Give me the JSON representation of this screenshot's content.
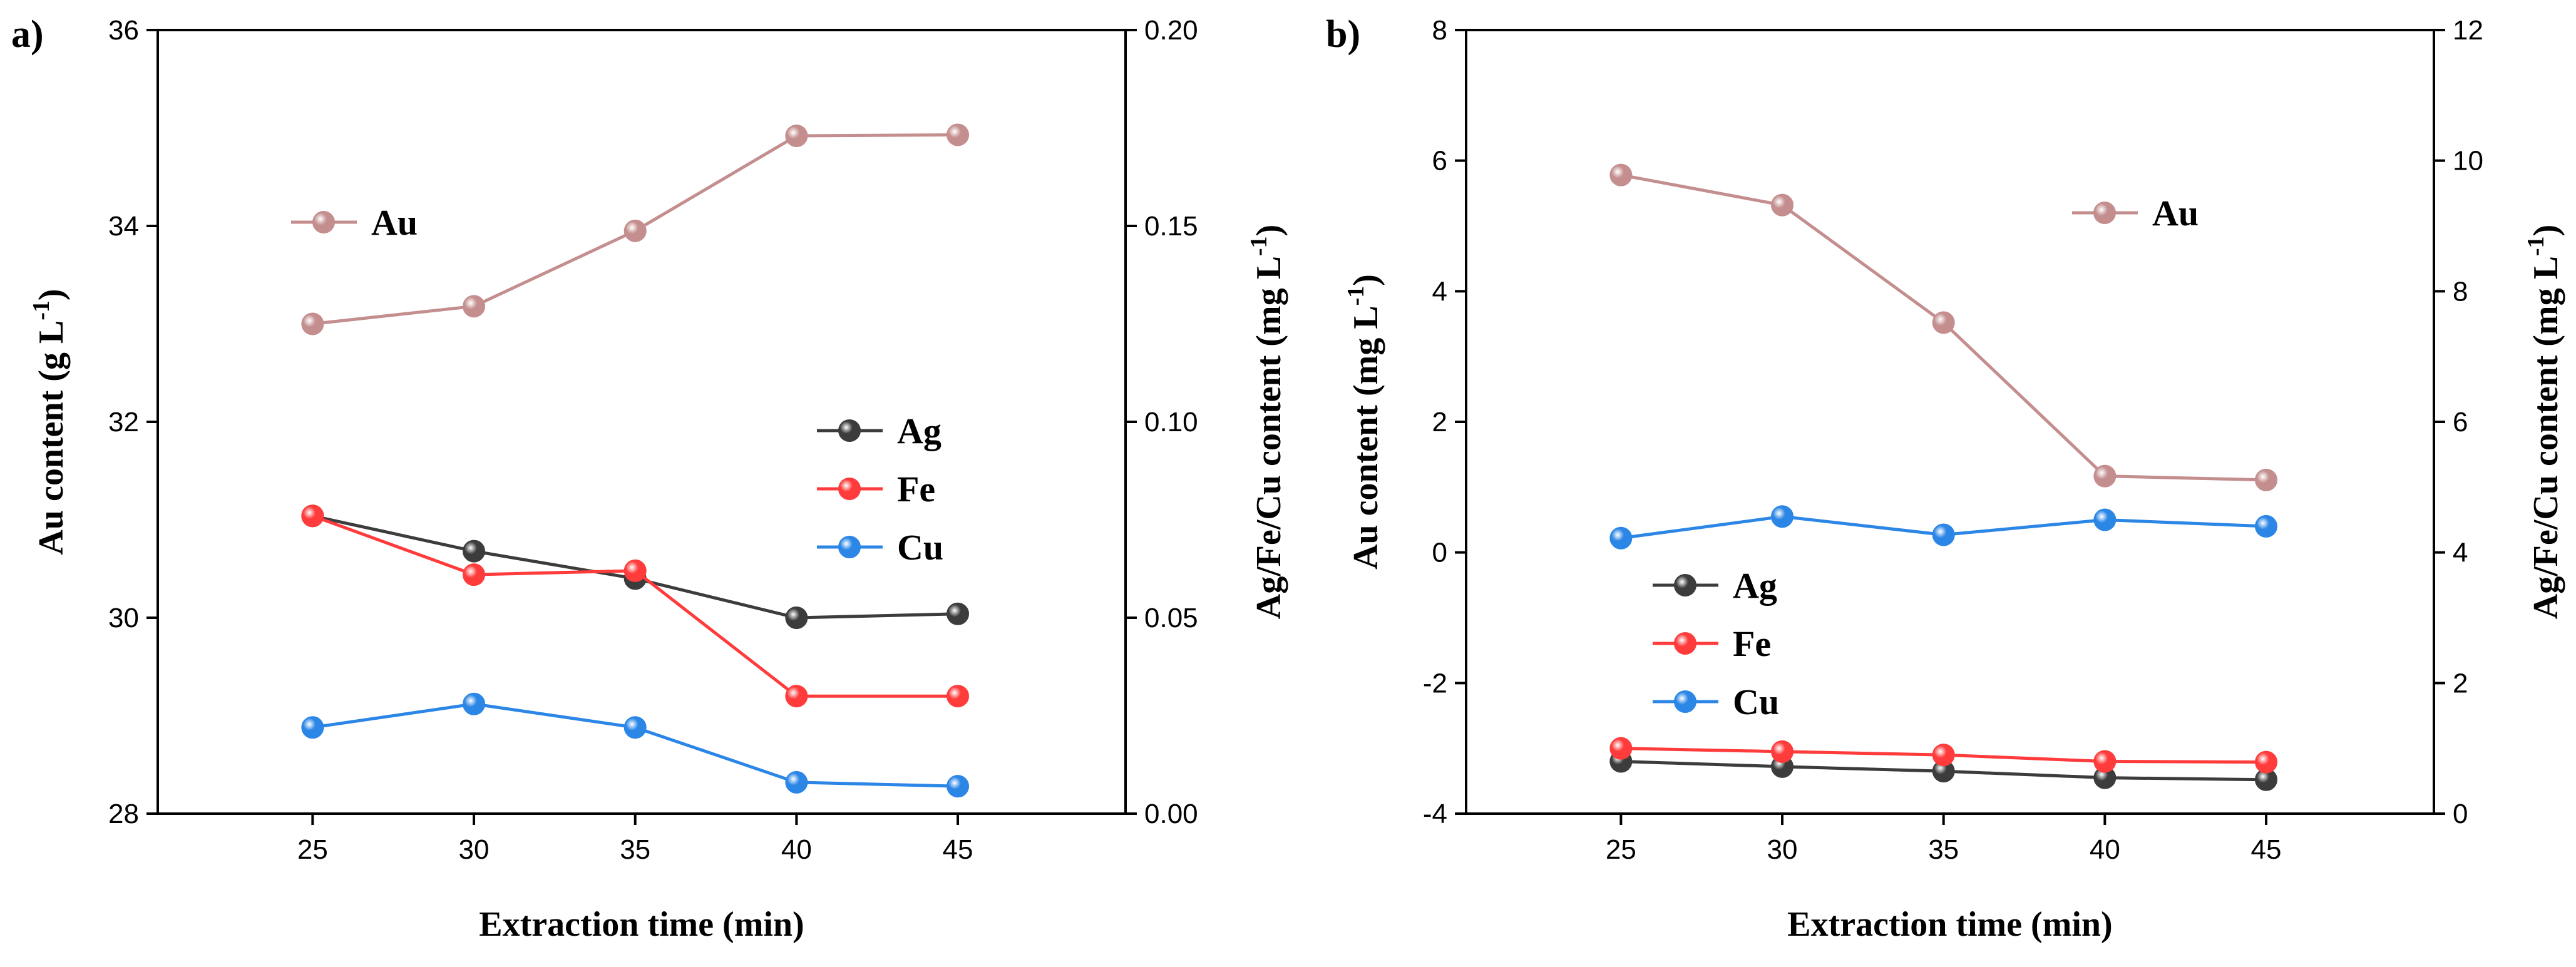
{
  "chart_data": [
    {
      "type": "line",
      "panel_label": "a)",
      "x": [
        25,
        30,
        35,
        40,
        45
      ],
      "xlabel": "Extraction time (min)",
      "xlim": [
        20.2,
        50.2
      ],
      "ylabel_left": "Au content (g L",
      "ylabel_left_sup": "-1",
      "ylabel_left_end": ")",
      "ylabel_right": "Ag/Fe/Cu content (mg L",
      "ylabel_right_sup": "-1",
      "ylabel_right_end": ")",
      "ylim_left": [
        28,
        36
      ],
      "yticks_left": [
        "28",
        "30",
        "32",
        "34",
        "36"
      ],
      "ylim_right": [
        0,
        0.2
      ],
      "yticks_right": [
        "0.00",
        "0.05",
        "0.10",
        "0.15",
        "0.20"
      ],
      "series": [
        {
          "name": "Au",
          "axis": "left",
          "color": "#c48e8e",
          "values": [
            33.0,
            33.18,
            33.95,
            34.92,
            34.93
          ]
        },
        {
          "name": "Ag",
          "axis": "right",
          "color": "#3c3c3c",
          "values": [
            0.076,
            0.067,
            0.06,
            0.05,
            0.051
          ]
        },
        {
          "name": "Fe",
          "axis": "right",
          "color": "#ff3b3b",
          "values": [
            0.076,
            0.061,
            0.062,
            0.03,
            0.03
          ]
        },
        {
          "name": "Cu",
          "axis": "right",
          "color": "#2b86e6",
          "values": [
            0.022,
            0.028,
            0.022,
            0.008,
            0.007
          ]
        }
      ],
      "legend": [
        {
          "group": "top-left",
          "items": [
            "Au"
          ]
        },
        {
          "group": "center-right",
          "items": [
            "Ag",
            "Fe",
            "Cu"
          ]
        }
      ],
      "grid": false
    },
    {
      "type": "line",
      "panel_label": "b)",
      "x": [
        25,
        30,
        35,
        40,
        45
      ],
      "xlabel": "Extraction time (min)",
      "xlim": [
        20.2,
        50.2
      ],
      "ylabel_left": "Au content (mg L",
      "ylabel_left_sup": "-1",
      "ylabel_left_end": ")",
      "ylabel_right": "Ag/Fe/Cu content (mg L",
      "ylabel_right_sup": "-1",
      "ylabel_right_end": ")",
      "ylim_left": [
        -4,
        8
      ],
      "yticks_left": [
        "-4",
        "-2",
        "0",
        "2",
        "4",
        "6",
        "8"
      ],
      "ylim_right": [
        0,
        12
      ],
      "yticks_right": [
        "0",
        "2",
        "4",
        "6",
        "8",
        "10",
        "12"
      ],
      "series": [
        {
          "name": "Au",
          "axis": "left",
          "color": "#c48e8e",
          "values": [
            5.78,
            5.32,
            3.52,
            1.17,
            1.11
          ]
        },
        {
          "name": "Ag",
          "axis": "left",
          "color": "#3c3c3c",
          "values": [
            -3.2,
            -3.28,
            -3.35,
            -3.45,
            -3.48
          ]
        },
        {
          "name": "Fe",
          "axis": "left",
          "color": "#ff3b3b",
          "values": [
            -3.0,
            -3.05,
            -3.1,
            -3.2,
            -3.21
          ]
        },
        {
          "name": "Cu",
          "axis": "left",
          "color": "#2b86e6",
          "values": [
            0.22,
            0.55,
            0.27,
            0.5,
            0.4
          ]
        }
      ],
      "legend": [
        {
          "group": "top-right",
          "items": [
            "Au"
          ]
        },
        {
          "group": "center-left",
          "items": [
            "Ag",
            "Fe",
            "Cu"
          ]
        }
      ],
      "grid": false
    }
  ]
}
